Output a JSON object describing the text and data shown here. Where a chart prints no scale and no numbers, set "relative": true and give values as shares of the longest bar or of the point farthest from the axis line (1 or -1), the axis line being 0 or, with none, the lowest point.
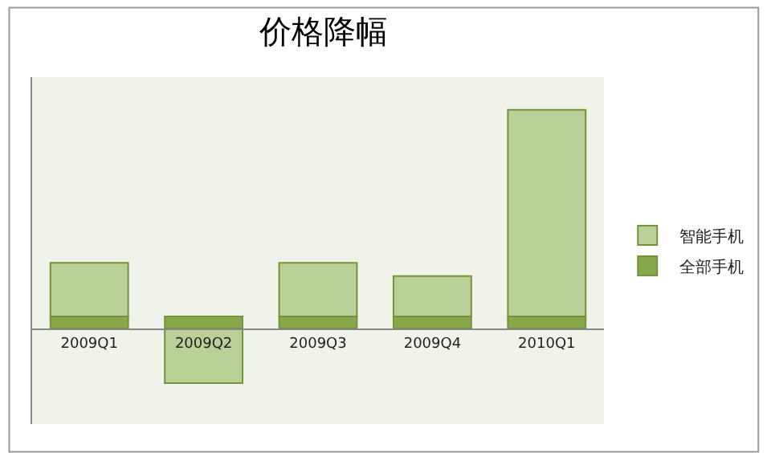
{
  "chart_data": {
    "type": "bar",
    "title": "价格降幅",
    "relative": true,
    "legend": "right",
    "grid": false,
    "stacked": true,
    "categories": [
      "2009Q1",
      "2009Q2",
      "2009Q3",
      "2009Q4",
      "2010Q1"
    ],
    "series": [
      {
        "name": "全部手机",
        "color": "#86a84a",
        "values": [
          0.055,
          0.055,
          0.055,
          0.055,
          0.055
        ]
      },
      {
        "name": "智能手机",
        "color": "#b9d096",
        "values": [
          0.245,
          -0.25,
          0.245,
          0.185,
          0.945
        ]
      }
    ]
  }
}
